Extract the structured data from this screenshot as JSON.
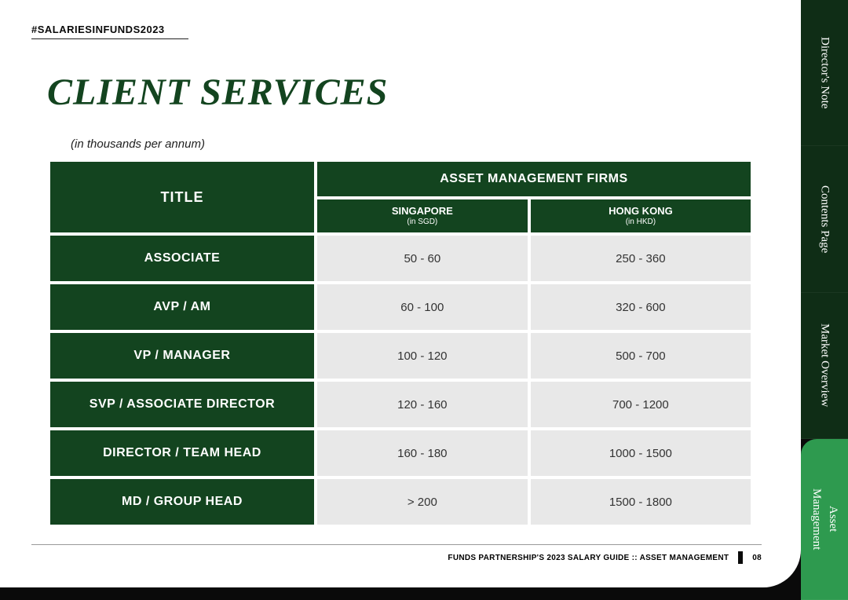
{
  "hashtag": "#SALARIESINFUNDS2023",
  "title": "CLIENT SERVICES",
  "subtitle": "(in thousands per annum)",
  "colors": {
    "brand_dark": "#13441f",
    "brand_light": "#2e9a4f",
    "cell_bg": "#e8e8e8",
    "page_bg": "#ffffff",
    "outer_bg": "#0a0a0a"
  },
  "table": {
    "title_header": "TITLE",
    "group_header": "ASSET MANAGEMENT FIRMS",
    "sub_headers": [
      {
        "label": "SINGAPORE",
        "unit": "(in SGD)"
      },
      {
        "label": "HONG KONG",
        "unit": "(in HKD)"
      }
    ],
    "rows": [
      {
        "title": "ASSOCIATE",
        "sg": "50 - 60",
        "hk": "250 - 360"
      },
      {
        "title": "AVP / AM",
        "sg": "60 - 100",
        "hk": "320 - 600"
      },
      {
        "title": "VP / MANAGER",
        "sg": "100 - 120",
        "hk": "500 -  700"
      },
      {
        "title": "SVP / ASSOCIATE DIRECTOR",
        "sg": "120 - 160",
        "hk": "700 - 1200"
      },
      {
        "title": "DIRECTOR / TEAM HEAD",
        "sg": "160 - 180",
        "hk": "1000 - 1500"
      },
      {
        "title": "MD / GROUP HEAD",
        "sg": ">  200",
        "hk": "1500 - 1800"
      }
    ]
  },
  "footer": {
    "text": "FUNDS PARTNERSHIP'S 2023 SALARY GUIDE :: ASSET MANAGEMENT",
    "page": "08"
  },
  "tabs": [
    {
      "label": "Director's Note",
      "active": false
    },
    {
      "label": "Contents Page",
      "active": false
    },
    {
      "label": "Market Overview",
      "active": false
    },
    {
      "label": "Asset\nManagement",
      "active": true
    }
  ]
}
